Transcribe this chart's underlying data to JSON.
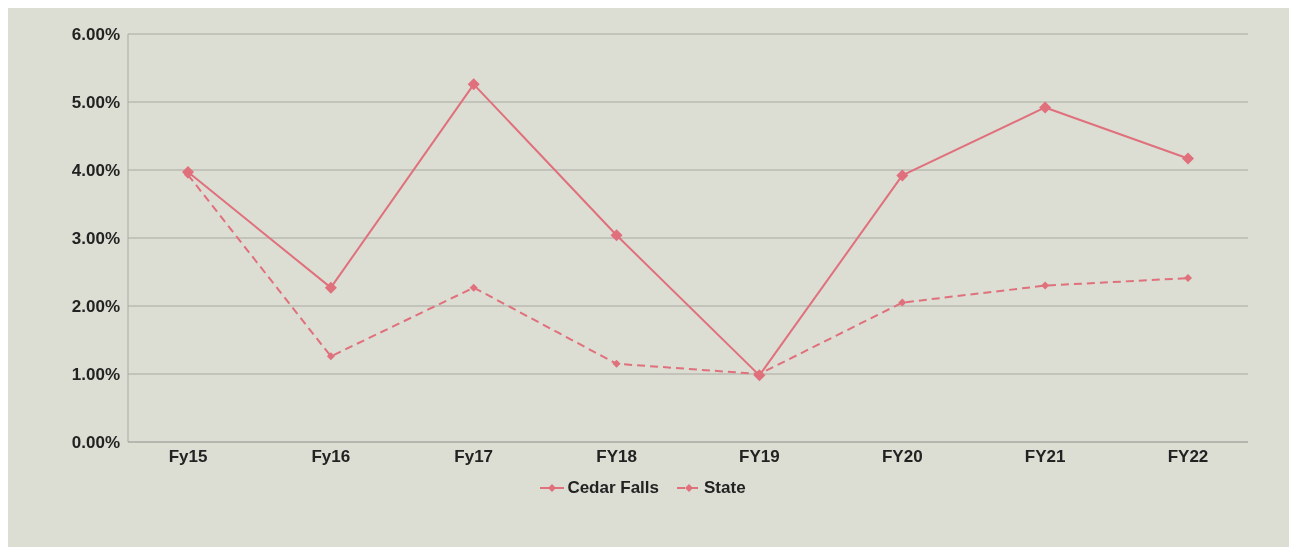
{
  "chart_data": {
    "type": "line",
    "categories": [
      "Fy15",
      "Fy16",
      "Fy17",
      "FY18",
      "FY19",
      "FY20",
      "FY21",
      "FY22"
    ],
    "series": [
      {
        "name": "Cedar Falls",
        "color": "#e0707c",
        "line_style": "solid",
        "values": [
          3.97,
          2.27,
          5.26,
          3.04,
          0.98,
          3.92,
          4.92,
          4.17
        ]
      },
      {
        "name": "State",
        "color": "#e0707c",
        "line_style": "dashed",
        "values": [
          3.93,
          1.26,
          2.27,
          1.15,
          1.0,
          2.05,
          2.3,
          2.41
        ]
      }
    ],
    "ylim": [
      0,
      6
    ],
    "yticks": [
      {
        "value": 0,
        "label": "0.00%"
      },
      {
        "value": 1,
        "label": "1.00%"
      },
      {
        "value": 2,
        "label": "2.00%"
      },
      {
        "value": 3,
        "label": "3.00%"
      },
      {
        "value": 4,
        "label": "4.00%"
      },
      {
        "value": 5,
        "label": "5.00%"
      },
      {
        "value": 6,
        "label": "6.00%"
      }
    ],
    "grid": "y",
    "legend": "bottom",
    "marker": "diamond"
  }
}
